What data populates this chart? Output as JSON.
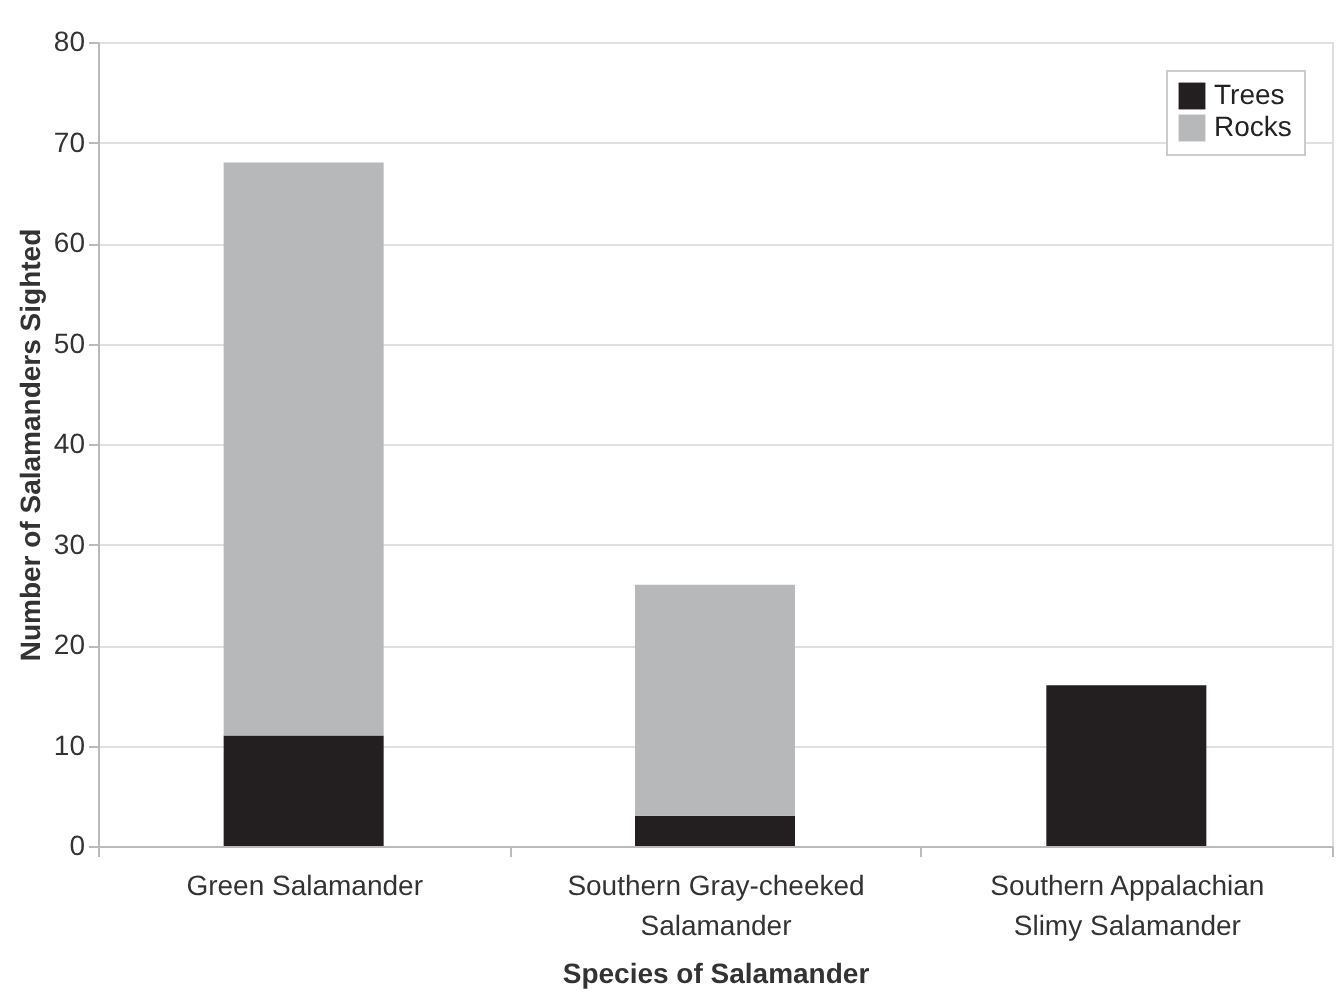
{
  "chart_data": {
    "type": "bar",
    "stacked": true,
    "xlabel": "Species of Salamander",
    "ylabel": "Number of Salamanders Sighted",
    "categories": [
      "Green Salamander",
      "Southern Gray-cheeked\nSalamander",
      "Southern Appalachian\nSlimy Salamander"
    ],
    "series": [
      {
        "name": "Trees",
        "color": "#231f20",
        "values": [
          11,
          3,
          16
        ]
      },
      {
        "name": "Rocks",
        "color": "#b7b8ba",
        "values": [
          57,
          23,
          0
        ]
      }
    ],
    "ylim": [
      0,
      80
    ],
    "yticks": [
      0,
      10,
      20,
      30,
      40,
      50,
      60,
      70,
      80
    ],
    "grid": "y",
    "legend": "top right"
  }
}
